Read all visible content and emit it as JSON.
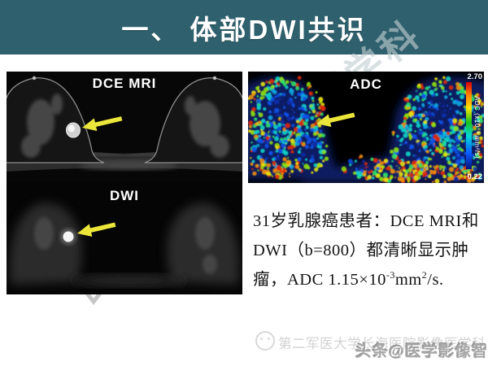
{
  "banner": {
    "title": "一、 体部DWI共识"
  },
  "panels": {
    "dce": {
      "label": "DCE MRI"
    },
    "dwi": {
      "label": "DWI"
    },
    "adc": {
      "label": "ADC",
      "colorbar": {
        "max": "2.70",
        "min": "0.22",
        "unit": "ADC (x10⁻³ mm²/s)"
      }
    }
  },
  "description": {
    "line1": "31岁乳腺癌患者：DCE MRI和",
    "line2": "DWI（b=800）都清晰显示肿",
    "line3": {
      "a": "瘤，ADC 1.15×10",
      "sup1": "-3",
      "b": "mm",
      "sup2": "2",
      "c": "/s."
    }
  },
  "watermarks": {
    "diagonal": "医学科",
    "institution": "第二军医大学长海医院影像医学科",
    "source": "头条@医学影像智库"
  },
  "colors": {
    "banner_bg": "#2e606d",
    "arrow": "#ece63a",
    "colorbar_top": "#d90000",
    "colorbar_bottom": "#04127d"
  }
}
